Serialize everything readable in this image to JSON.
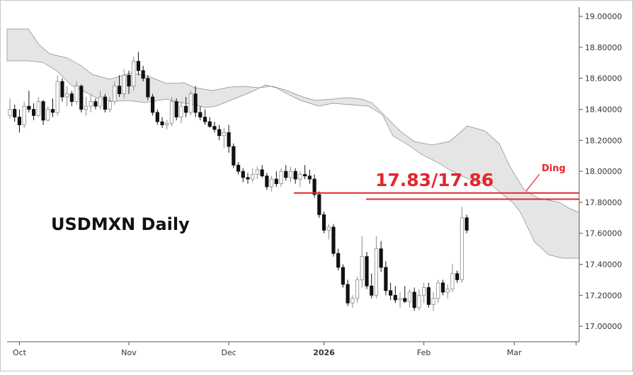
{
  "chart_data": {
    "type": "candlestick",
    "title": "USDMXN Daily",
    "y_axis": {
      "ylim": [
        16.9,
        19.06
      ],
      "tick_labels": [
        "19.00000",
        "18.80000",
        "18.60000",
        "18.40000",
        "18.20000",
        "18.00000",
        "17.80000",
        "17.60000",
        "17.40000",
        "17.20000",
        "17.00000"
      ],
      "tick_values": [
        19.0,
        18.8,
        18.6,
        18.4,
        18.2,
        18.0,
        17.8,
        17.6,
        17.4,
        17.2,
        17.0
      ],
      "position": "right"
    },
    "x_axis": {
      "labels": [
        {
          "text": "Oct",
          "index": 2,
          "bold": false
        },
        {
          "text": "Nov",
          "index": 25,
          "bold": false
        },
        {
          "text": "Dec",
          "index": 46,
          "bold": false
        },
        {
          "text": "2026",
          "index": 66,
          "bold": true
        },
        {
          "text": "Feb",
          "index": 87,
          "bold": false
        },
        {
          "text": "Mar",
          "index": 106,
          "bold": false
        }
      ],
      "total_slots": 120
    },
    "annotations": {
      "level_label": "17.83/17.86",
      "levels": [
        17.86,
        17.82
      ],
      "ding_label": "Ding"
    },
    "candles": [
      [
        18.36,
        18.47,
        18.34,
        18.4
      ],
      [
        18.4,
        18.43,
        18.32,
        18.35
      ],
      [
        18.35,
        18.4,
        18.25,
        18.3
      ],
      [
        18.3,
        18.45,
        18.28,
        18.42
      ],
      [
        18.42,
        18.52,
        18.38,
        18.4
      ],
      [
        18.4,
        18.44,
        18.33,
        18.36
      ],
      [
        18.36,
        18.48,
        18.35,
        18.45
      ],
      [
        18.45,
        18.46,
        18.3,
        18.33
      ],
      [
        18.33,
        18.42,
        18.32,
        18.4
      ],
      [
        18.4,
        18.47,
        18.35,
        18.38
      ],
      [
        18.38,
        18.62,
        18.36,
        18.58
      ],
      [
        18.58,
        18.6,
        18.45,
        18.48
      ],
      [
        18.48,
        18.55,
        18.42,
        18.5
      ],
      [
        18.5,
        18.52,
        18.42,
        18.45
      ],
      [
        18.45,
        18.58,
        18.43,
        18.55
      ],
      [
        18.55,
        18.56,
        18.38,
        18.4
      ],
      [
        18.4,
        18.48,
        18.36,
        18.42
      ],
      [
        18.42,
        18.5,
        18.38,
        18.45
      ],
      [
        18.45,
        18.47,
        18.4,
        18.42
      ],
      [
        18.42,
        18.52,
        18.4,
        18.48
      ],
      [
        18.48,
        18.5,
        18.38,
        18.4
      ],
      [
        18.4,
        18.48,
        18.38,
        18.45
      ],
      [
        18.45,
        18.58,
        18.43,
        18.55
      ],
      [
        18.55,
        18.62,
        18.48,
        18.5
      ],
      [
        18.5,
        18.66,
        18.47,
        18.62
      ],
      [
        18.62,
        18.65,
        18.5,
        18.55
      ],
      [
        18.55,
        18.74,
        18.52,
        18.71
      ],
      [
        18.71,
        18.77,
        18.62,
        18.65
      ],
      [
        18.65,
        18.68,
        18.58,
        18.6
      ],
      [
        18.6,
        18.62,
        18.46,
        18.48
      ],
      [
        18.48,
        18.5,
        18.36,
        18.38
      ],
      [
        18.38,
        18.4,
        18.3,
        18.32
      ],
      [
        18.32,
        18.35,
        18.28,
        18.3
      ],
      [
        18.3,
        18.33,
        18.27,
        18.31
      ],
      [
        18.31,
        18.48,
        18.29,
        18.45
      ],
      [
        18.45,
        18.47,
        18.33,
        18.35
      ],
      [
        18.35,
        18.45,
        18.31,
        18.42
      ],
      [
        18.42,
        18.48,
        18.35,
        18.38
      ],
      [
        18.38,
        18.52,
        18.36,
        18.5
      ],
      [
        18.5,
        18.55,
        18.35,
        18.38
      ],
      [
        18.38,
        18.42,
        18.33,
        18.35
      ],
      [
        18.35,
        18.4,
        18.3,
        18.32
      ],
      [
        18.32,
        18.35,
        18.28,
        18.29
      ],
      [
        18.29,
        18.32,
        18.25,
        18.27
      ],
      [
        18.27,
        18.3,
        18.2,
        18.23
      ],
      [
        18.23,
        18.28,
        18.15,
        18.25
      ],
      [
        18.25,
        18.3,
        18.12,
        18.16
      ],
      [
        18.16,
        18.18,
        18.02,
        18.04
      ],
      [
        18.04,
        18.06,
        17.98,
        18.0
      ],
      [
        18.0,
        18.02,
        17.93,
        17.96
      ],
      [
        17.96,
        17.99,
        17.92,
        17.95
      ],
      [
        17.95,
        18.02,
        17.93,
        17.98
      ],
      [
        17.98,
        18.03,
        17.95,
        18.01
      ],
      [
        18.01,
        18.04,
        17.96,
        17.97
      ],
      [
        17.97,
        17.99,
        17.88,
        17.9
      ],
      [
        17.9,
        17.97,
        17.87,
        17.95
      ],
      [
        17.95,
        18.0,
        17.9,
        17.92
      ],
      [
        17.92,
        18.02,
        17.9,
        18.0
      ],
      [
        18.0,
        18.04,
        17.94,
        17.96
      ],
      [
        17.96,
        18.03,
        17.93,
        18.0
      ],
      [
        18.0,
        18.02,
        17.92,
        17.95
      ],
      [
        17.95,
        18.0,
        17.9,
        17.98
      ],
      [
        17.98,
        18.04,
        17.95,
        17.97
      ],
      [
        17.97,
        18.01,
        17.92,
        17.95
      ],
      [
        17.95,
        17.98,
        17.83,
        17.85
      ],
      [
        17.85,
        17.87,
        17.7,
        17.72
      ],
      [
        17.72,
        17.74,
        17.6,
        17.62
      ],
      [
        17.62,
        17.66,
        17.56,
        17.64
      ],
      [
        17.64,
        17.66,
        17.45,
        17.47
      ],
      [
        17.47,
        17.5,
        17.36,
        17.38
      ],
      [
        17.38,
        17.4,
        17.25,
        17.27
      ],
      [
        17.27,
        17.3,
        17.13,
        17.15
      ],
      [
        17.15,
        17.2,
        17.12,
        17.18
      ],
      [
        17.18,
        17.32,
        17.15,
        17.3
      ],
      [
        17.3,
        17.58,
        17.25,
        17.45
      ],
      [
        17.45,
        17.48,
        17.24,
        17.26
      ],
      [
        17.26,
        17.34,
        17.18,
        17.2
      ],
      [
        17.2,
        17.58,
        17.18,
        17.5
      ],
      [
        17.5,
        17.55,
        17.35,
        17.38
      ],
      [
        17.38,
        17.42,
        17.2,
        17.23
      ],
      [
        17.23,
        17.28,
        17.17,
        17.2
      ],
      [
        17.2,
        17.26,
        17.15,
        17.17
      ],
      [
        17.17,
        17.22,
        17.12,
        17.18
      ],
      [
        17.18,
        17.26,
        17.15,
        17.16
      ],
      [
        17.16,
        17.24,
        17.12,
        17.22
      ],
      [
        17.22,
        17.25,
        17.1,
        17.12
      ],
      [
        17.12,
        17.24,
        17.1,
        17.2
      ],
      [
        17.2,
        17.28,
        17.15,
        17.25
      ],
      [
        17.25,
        17.28,
        17.12,
        17.14
      ],
      [
        17.14,
        17.22,
        17.1,
        17.18
      ],
      [
        17.18,
        17.3,
        17.15,
        17.28
      ],
      [
        17.28,
        17.3,
        17.2,
        17.22
      ],
      [
        17.22,
        17.27,
        17.18,
        17.24
      ],
      [
        17.24,
        17.4,
        17.22,
        17.34
      ],
      [
        17.34,
        17.36,
        17.28,
        17.3
      ],
      [
        17.3,
        17.77,
        17.28,
        17.7
      ],
      [
        17.7,
        17.72,
        17.6,
        17.62
      ]
    ]
  }
}
